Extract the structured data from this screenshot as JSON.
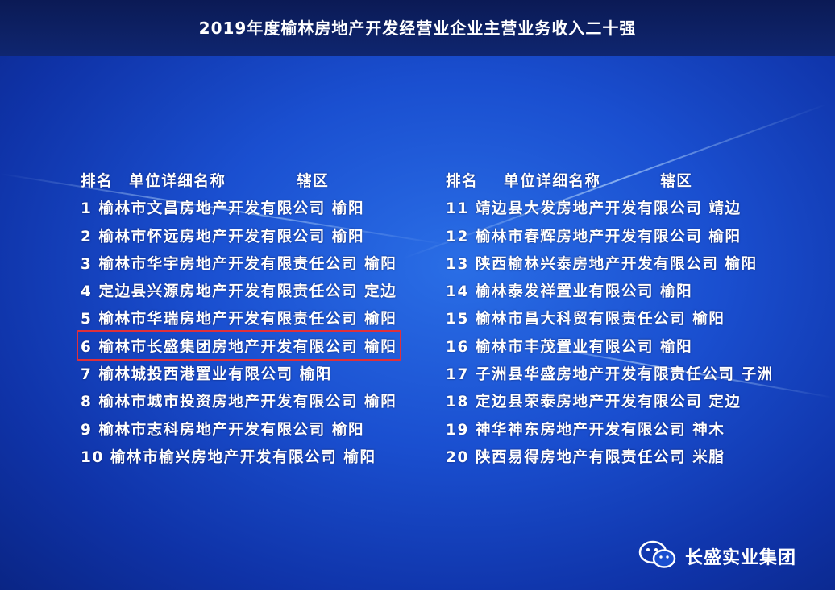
{
  "title": "2019年度榆林房地产开发经营业企业主营业务收入二十强",
  "header": {
    "rank": "排名",
    "name": "单位详细名称",
    "district": "辖区"
  },
  "left_rows": [
    {
      "rank": "1",
      "name": "榆林市文昌房地产开发有限公司",
      "district": "榆阳"
    },
    {
      "rank": "2",
      "name": "榆林市怀远房地产开发有限公司",
      "district": "榆阳"
    },
    {
      "rank": "3",
      "name": "榆林市华宇房地产开发有限责任公司",
      "district": "榆阳"
    },
    {
      "rank": "4",
      "name": "定边县兴源房地产开发有限责任公司",
      "district": "定边"
    },
    {
      "rank": "5",
      "name": "榆林市华瑞房地产开发有限责任公司",
      "district": "榆阳"
    },
    {
      "rank": "6",
      "name": "榆林市长盛集团房地产开发有限公司",
      "district": "榆阳"
    },
    {
      "rank": "7",
      "name": "榆林城投西港置业有限公司",
      "district": "榆阳"
    },
    {
      "rank": "8",
      "name": "榆林市城市投资房地产开发有限公司",
      "district": "榆阳"
    },
    {
      "rank": "9",
      "name": "榆林市志科房地产开发有限公司",
      "district": "榆阳"
    },
    {
      "rank": "10",
      "name": "榆林市榆兴房地产开发有限公司",
      "district": "榆阳"
    }
  ],
  "right_rows": [
    {
      "rank": "11",
      "name": "靖边县大发房地产开发有限公司",
      "district": "靖边"
    },
    {
      "rank": "12",
      "name": "榆林市春辉房地产开发有限公司",
      "district": "榆阳"
    },
    {
      "rank": "13",
      "name": "陕西榆林兴泰房地产开发有限公司",
      "district": "榆阳"
    },
    {
      "rank": "14",
      "name": "榆林泰发祥置业有限公司",
      "district": "榆阳"
    },
    {
      "rank": "15",
      "name": "榆林市昌大科贸有限责任公司",
      "district": "榆阳"
    },
    {
      "rank": "16",
      "name": "榆林市丰茂置业有限公司",
      "district": "榆阳"
    },
    {
      "rank": "17",
      "name": "子洲县华盛房地产开发有限责任公司",
      "district": "子洲"
    },
    {
      "rank": "18",
      "name": "定边县荣泰房地产开发有限公司",
      "district": "定边"
    },
    {
      "rank": "19",
      "name": "神华神东房地产开发有限公司",
      "district": "神木"
    },
    {
      "rank": "20",
      "name": "陕西易得房地产有限责任公司",
      "district": "米脂"
    }
  ],
  "highlight_color": "#e0303a",
  "watermark": {
    "icon": "wechat-icon",
    "text": "长盛实业集团"
  }
}
